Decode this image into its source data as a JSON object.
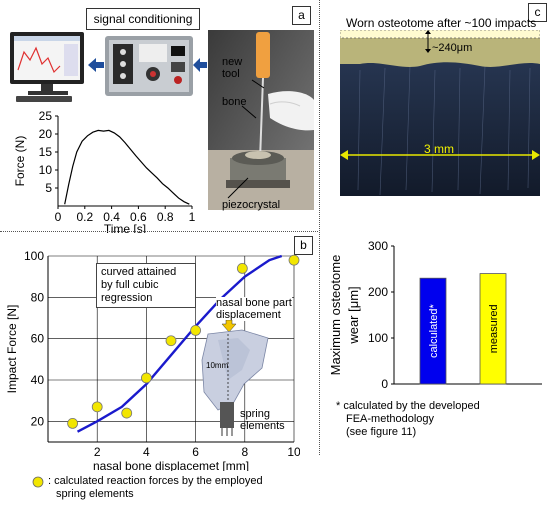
{
  "panel_a": {
    "label": "a",
    "signal_box_label": "signal conditioning",
    "photo_labels": {
      "new_tool": "new tool",
      "bone": "bone",
      "piezocrystal": "piezocrystal"
    },
    "chart_data": {
      "type": "line",
      "xlabel": "Time [s]",
      "ylabel": "Force (N)",
      "xlim": [
        0,
        1
      ],
      "ylim": [
        0,
        25
      ],
      "x_ticks": [
        "0",
        "0.2",
        "0.4",
        "0.6",
        "0.8",
        "1"
      ],
      "y_ticks": [
        "5",
        "10",
        "15",
        "20",
        "25"
      ],
      "series": [
        {
          "x": [
            0.05,
            0.08,
            0.11,
            0.14,
            0.18,
            0.22,
            0.26,
            0.3,
            0.34,
            0.38,
            0.42,
            0.46,
            0.5,
            0.54,
            0.58,
            0.62,
            0.66,
            0.7,
            0.74,
            0.78,
            0.82,
            0.86,
            0.9,
            0.94,
            0.98
          ],
          "y": [
            0.5,
            6,
            11,
            15,
            18,
            19.5,
            20.5,
            21,
            20.8,
            21,
            20.3,
            19.2,
            17.6,
            15.8,
            14,
            12.3,
            10.6,
            9.2,
            7.8,
            6.2,
            5,
            3.6,
            2.2,
            1.2,
            0.5
          ]
        }
      ]
    }
  },
  "panel_b": {
    "label": "b",
    "annotation_regression": [
      "curved attained",
      "by full cubic",
      "regression"
    ],
    "annotation_nasal": [
      "nasal bone part",
      "displacement"
    ],
    "annotation_10mm": "10mm",
    "annotation_spring": [
      "spring",
      "elements"
    ],
    "legend_text": [
      ": calculated reaction forces by the employed",
      "spring elements"
    ],
    "chart_data": {
      "type": "scatter",
      "xlabel": "nasal bone displacemet [mm]",
      "ylabel": "Impact Force [N]",
      "xlim": [
        0,
        10
      ],
      "ylim": [
        10,
        100
      ],
      "x_ticks": [
        "2",
        "4",
        "6",
        "8",
        "10"
      ],
      "y_ticks": [
        "20",
        "40",
        "60",
        "80",
        "100"
      ],
      "points": {
        "x": [
          1,
          2,
          3.2,
          4,
          5,
          6,
          7.9,
          10
        ],
        "y": [
          19,
          27,
          24,
          41,
          59,
          64,
          94,
          98
        ]
      },
      "fit_curve": {
        "x": [
          1.2,
          2,
          3,
          4,
          5,
          6,
          7,
          8,
          9,
          9.5
        ],
        "y": [
          15,
          20,
          27,
          38,
          52,
          66,
          79,
          90,
          98,
          100
        ]
      }
    }
  },
  "panel_c": {
    "label": "c",
    "photo_title": "Worn osteotome after ~100 impacts",
    "wear_label": "~240μm",
    "width_label": "3 mm",
    "chart_data": {
      "type": "bar",
      "ylabel": [
        "Maximum osteotome",
        "wear  [μm]"
      ],
      "ylim": [
        0,
        300
      ],
      "y_ticks": [
        "0",
        "100",
        "200",
        "300"
      ],
      "categories": [
        "calculated*",
        "measured"
      ],
      "values": [
        230,
        240
      ],
      "colors": [
        "#0000ee",
        "#ffff00"
      ]
    },
    "footnote": [
      "* calculated by the developed",
      "FEA-methodology",
      "(see figure 11)"
    ]
  }
}
